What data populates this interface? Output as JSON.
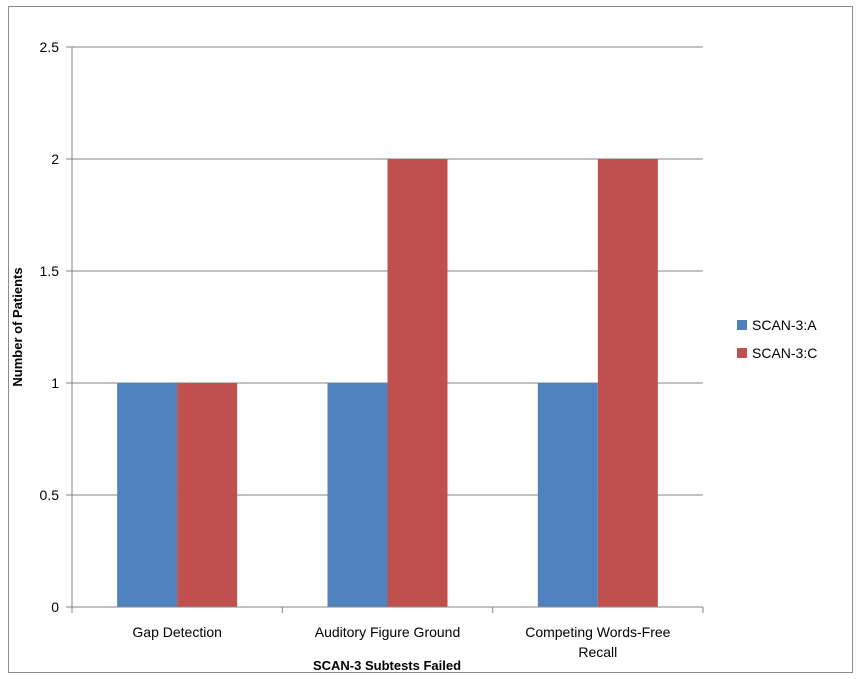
{
  "chart_data": {
    "type": "bar",
    "categories": [
      "Gap Detection",
      "Auditory Figure Ground",
      "Competing Words-Free Recall"
    ],
    "category_lines": [
      [
        "Gap Detection"
      ],
      [
        "Auditory Figure Ground"
      ],
      [
        "Competing Words-Free",
        "Recall"
      ]
    ],
    "series": [
      {
        "name": "SCAN-3:A",
        "values": [
          1,
          1,
          1
        ],
        "color": "#4f81bd"
      },
      {
        "name": "SCAN-3:C",
        "values": [
          1,
          2,
          2
        ],
        "color": "#c0504d"
      }
    ],
    "xlabel": "SCAN-3 Subtests Failed",
    "ylabel": "Number of Patients",
    "ylim": [
      0,
      2.5
    ],
    "yticks": [
      "0",
      "0.5",
      "1",
      "1.5",
      "2",
      "2.5"
    ],
    "grid": true,
    "legend_position": "right",
    "colors": {
      "gridline": "#868686",
      "axis": "#868686"
    }
  }
}
